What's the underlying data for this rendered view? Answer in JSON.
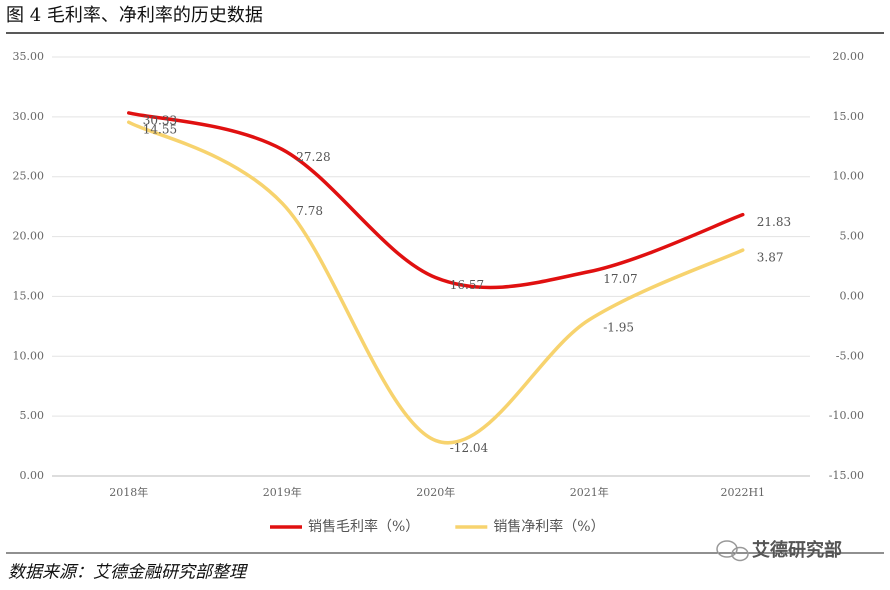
{
  "title": "图 4 毛利率、净利率的历史数据",
  "source": "数据来源：艾德金融研究部整理",
  "watermark": "艾德研究部",
  "chart_data": {
    "type": "line",
    "categories": [
      "2018年",
      "2019年",
      "2020年",
      "2021年",
      "2022H1"
    ],
    "series": [
      {
        "name": "销售毛利率（%）",
        "color": "#e01010",
        "values": [
          30.33,
          27.28,
          16.57,
          17.07,
          21.83
        ]
      },
      {
        "name": "销售净利率（%）",
        "color": "#f7d36e",
        "axis": "y2",
        "values": [
          14.55,
          7.78,
          -12.04,
          -1.95,
          3.87
        ]
      }
    ],
    "ylim": [
      0,
      35
    ],
    "yticks": [
      {
        "value": 0,
        "label": "0.00"
      },
      {
        "value": 5,
        "label": "5.00"
      },
      {
        "value": 10,
        "label": "10.00"
      },
      {
        "value": 15,
        "label": "15.00"
      },
      {
        "value": 20,
        "label": "20.00"
      },
      {
        "value": 25,
        "label": "25.00"
      },
      {
        "value": 30,
        "label": "30.00"
      },
      {
        "value": 35,
        "label": "35.00"
      }
    ],
    "y2lim": [
      -15,
      20
    ],
    "y2ticks": [
      {
        "value": -15,
        "label": "-15.00"
      },
      {
        "value": -10,
        "label": "-10.00"
      },
      {
        "value": -5,
        "label": "-5.00"
      },
      {
        "value": 0,
        "label": "0.00"
      },
      {
        "value": 5,
        "label": "5.00"
      },
      {
        "value": 10,
        "label": "10.00"
      },
      {
        "value": 15,
        "label": "15.00"
      },
      {
        "value": 20,
        "label": "20.00"
      }
    ],
    "grid": true,
    "smooth": true,
    "legend": "bottom"
  }
}
